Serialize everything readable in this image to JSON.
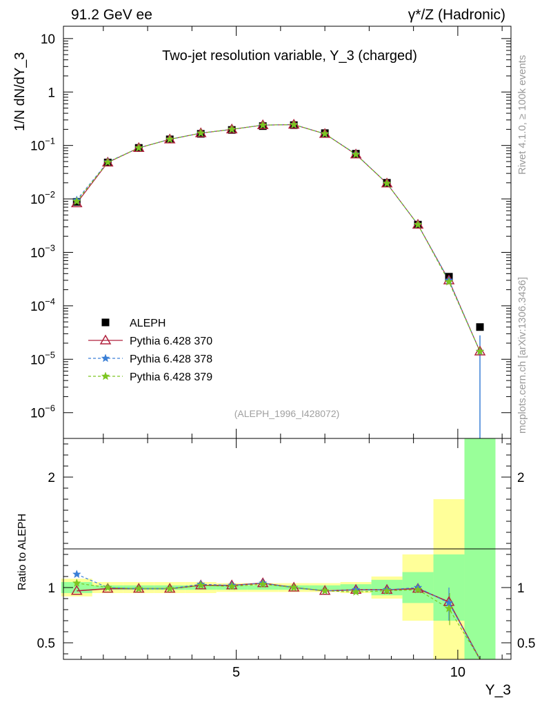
{
  "header": {
    "left": "91.2 GeV ee",
    "right": "γ*/Z (Hadronic)"
  },
  "side_texts": {
    "rivet": "Rivet 4.1.0, ≥ 100k events",
    "mcplots": "mcplots.cern.ch [arXiv:1306.3436]"
  },
  "chart_data": [
    {
      "type": "scatter",
      "panel": "main",
      "title": "Two-jet resolution variable, Y_3 (charged)",
      "ylabel": "1/N  dN/dY_3",
      "yscale": "log",
      "ylim": [
        3.3e-07,
        17
      ],
      "xlim": [
        1.1,
        11.2
      ],
      "ref_id": "(ALEPH_1996_I428072)",
      "y_ticks": [
        {
          "v": 1e-06,
          "b": "10",
          "e": "−6"
        },
        {
          "v": 1e-05,
          "b": "10",
          "e": "−5"
        },
        {
          "v": 0.0001,
          "b": "10",
          "e": "−4"
        },
        {
          "v": 0.001,
          "b": "10",
          "e": "−3"
        },
        {
          "v": 0.01,
          "b": "10",
          "e": "−2"
        },
        {
          "v": 0.1,
          "b": "10",
          "e": "−1"
        },
        {
          "v": 1,
          "b": "1",
          "e": ""
        },
        {
          "v": 10,
          "b": "10",
          "e": ""
        }
      ],
      "x": [
        1.4,
        2.1,
        2.8,
        3.5,
        4.2,
        4.9,
        5.6,
        6.3,
        7.0,
        7.7,
        8.4,
        9.1,
        9.8,
        10.5
      ],
      "series": [
        {
          "name": "ALEPH",
          "color": "#000000",
          "marker": "square",
          "line": "none",
          "values": [
            0.0088,
            0.048,
            0.09,
            0.13,
            0.165,
            0.195,
            0.23,
            0.24,
            0.17,
            0.07,
            0.02,
            0.0033,
            0.00035,
            4e-05
          ]
        },
        {
          "name": "Pythia 6.428 370",
          "color": "#b0203c",
          "marker": "triangle",
          "line": "solid",
          "values": [
            0.0083,
            0.048,
            0.09,
            0.13,
            0.17,
            0.2,
            0.24,
            0.245,
            0.165,
            0.068,
            0.0195,
            0.0033,
            0.0003,
            1.4e-05
          ]
        },
        {
          "name": "Pythia 6.428 378",
          "color": "#3a7fd6",
          "marker": "star",
          "line": "dashed",
          "values": [
            0.0095,
            0.049,
            0.09,
            0.13,
            0.17,
            0.2,
            0.24,
            0.245,
            0.165,
            0.069,
            0.0195,
            0.0033,
            0.0003,
            1.4e-05
          ]
        },
        {
          "name": "Pythia 6.428 379",
          "color": "#7cc520",
          "marker": "star",
          "line": "dashed",
          "values": [
            0.009,
            0.0485,
            0.09,
            0.13,
            0.17,
            0.2,
            0.24,
            0.245,
            0.165,
            0.068,
            0.0195,
            0.0033,
            0.00028,
            1.4e-05
          ]
        }
      ]
    },
    {
      "type": "scatter",
      "panel": "ratio",
      "ylabel": "Ratio to ALEPH",
      "xlabel": "Y_3",
      "ylim": [
        0.35,
        2.35
      ],
      "xlim": [
        1.1,
        11.2
      ],
      "x_ticks": [
        5,
        10
      ],
      "y_ticks": [
        0.5,
        1,
        2
      ],
      "bins": [
        1.05,
        1.75,
        2.45,
        3.15,
        3.85,
        4.55,
        5.25,
        5.95,
        6.65,
        7.35,
        8.05,
        8.75,
        9.45,
        10.15,
        10.85
      ],
      "band_inner": [
        0.05,
        0.02,
        0.02,
        0.02,
        0.02,
        0.02,
        0.02,
        0.02,
        0.02,
        0.03,
        0.07,
        0.14,
        0.3,
        1.5
      ],
      "band_outer": [
        0.08,
        0.05,
        0.05,
        0.05,
        0.05,
        0.04,
        0.04,
        0.04,
        0.04,
        0.05,
        0.1,
        0.3,
        0.8,
        2.0
      ],
      "series": [
        {
          "name": "Pythia 6.428 370",
          "color": "#b0203c",
          "marker": "triangle",
          "line": "solid",
          "values": [
            0.97,
            0.99,
            0.99,
            0.99,
            1.02,
            1.02,
            1.04,
            1.0,
            0.97,
            0.98,
            0.98,
            0.99,
            0.87,
            0.35
          ]
        },
        {
          "name": "Pythia 6.428 378",
          "color": "#3a7fd6",
          "marker": "star",
          "line": "dashed",
          "values": [
            1.12,
            1.0,
            0.99,
            0.99,
            1.03,
            1.02,
            1.04,
            1.0,
            0.97,
            0.98,
            0.98,
            1.0,
            0.86,
            0.35
          ]
        },
        {
          "name": "Pythia 6.428 379",
          "color": "#7cc520",
          "marker": "star",
          "line": "dashed",
          "values": [
            1.04,
            1.0,
            0.99,
            0.99,
            1.02,
            1.01,
            1.03,
            1.0,
            0.97,
            0.96,
            0.97,
            0.98,
            0.81,
            0.35
          ]
        }
      ]
    }
  ]
}
